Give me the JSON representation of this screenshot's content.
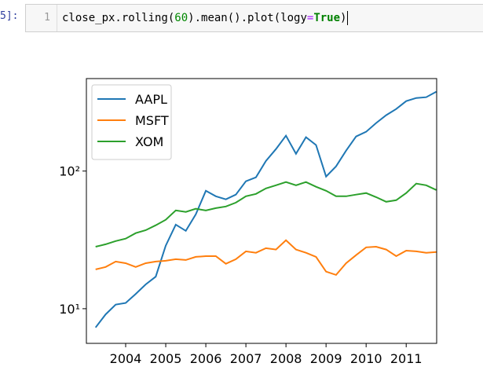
{
  "cell": {
    "prompt": "5]:",
    "line_number": "1",
    "code": [
      "close_px.rolling(",
      "60",
      ").mean().plot(logy",
      "=",
      "True",
      ")"
    ]
  },
  "chart_data": {
    "type": "line",
    "log_y": true,
    "legend": "upper left",
    "x": [
      2003.25,
      2003.5,
      2003.75,
      2004.0,
      2004.25,
      2004.5,
      2004.75,
      2005.0,
      2005.25,
      2005.5,
      2005.75,
      2006.0,
      2006.25,
      2006.5,
      2006.75,
      2007.0,
      2007.25,
      2007.5,
      2007.75,
      2008.0,
      2008.25,
      2008.5,
      2008.75,
      2009.0,
      2009.25,
      2009.5,
      2009.75,
      2010.0,
      2010.25,
      2010.5,
      2010.75,
      2011.0,
      2011.25,
      2011.5,
      2011.75
    ],
    "series": [
      {
        "name": "AAPL",
        "color": "#1f77b4",
        "values": [
          7.3,
          9.1,
          10.7,
          11.0,
          12.8,
          15.0,
          17.1,
          28.7,
          40.8,
          36.8,
          48.5,
          71.9,
          65.6,
          62.3,
          67.4,
          84.3,
          90.0,
          118.6,
          144.5,
          180.7,
          133.6,
          176.2,
          154.5,
          91.2,
          108.2,
          140.8,
          178.3,
          193.1,
          223.2,
          254.7,
          282.7,
          322.5,
          339.8,
          344.4,
          377.6
        ]
      },
      {
        "name": "MSFT",
        "color": "#ff7f0e",
        "values": [
          19.3,
          20.1,
          22.0,
          21.4,
          20.1,
          21.4,
          22.0,
          22.3,
          22.9,
          22.6,
          23.8,
          24.1,
          24.1,
          21.2,
          22.9,
          26.1,
          25.5,
          27.5,
          26.9,
          31.4,
          26.9,
          25.5,
          23.8,
          18.6,
          17.6,
          21.4,
          24.5,
          27.9,
          28.2,
          26.9,
          24.1,
          26.4,
          26.1,
          25.5,
          25.8
        ]
      },
      {
        "name": "XOM",
        "color": "#2ca02c",
        "values": [
          28.2,
          29.4,
          31.0,
          32.3,
          35.4,
          37.2,
          40.4,
          44.3,
          51.8,
          50.5,
          53.2,
          51.8,
          53.8,
          55.3,
          59.0,
          65.6,
          68.2,
          74.8,
          78.9,
          83.2,
          78.9,
          83.2,
          76.9,
          71.9,
          65.6,
          65.6,
          67.4,
          69.2,
          64.7,
          59.8,
          61.4,
          69.2,
          81.1,
          78.9,
          72.9
        ]
      }
    ],
    "xlim": [
      2003.02,
      2011.76
    ],
    "xticks": [
      2004,
      2005,
      2006,
      2007,
      2008,
      2009,
      2010,
      2011
    ],
    "ylim": [
      5.6,
      470
    ],
    "yticks": [
      {
        "value": 10,
        "label": "10¹"
      },
      {
        "value": 100,
        "label": "10²"
      }
    ]
  }
}
